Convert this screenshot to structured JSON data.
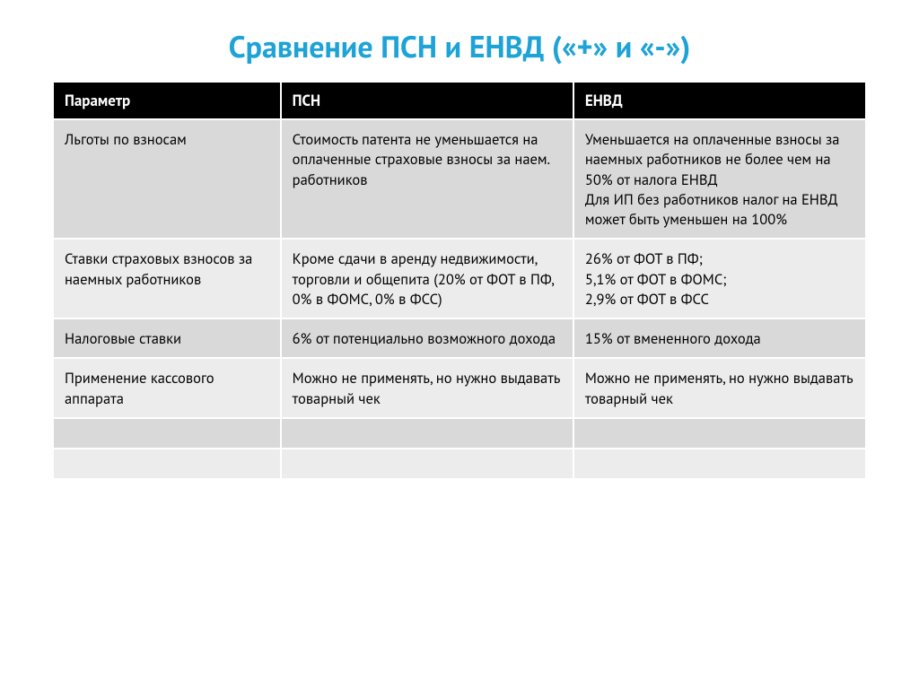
{
  "title": "Сравнение ПСН и ЕНВД («+» и «-»)",
  "colors": {
    "title": "#1ea3d6",
    "header_bg": "#000000",
    "header_text": "#ffffff",
    "row_odd_bg": "#d9d9d9",
    "row_even_bg": "#ececec",
    "cell_text": "#000000",
    "border": "#ffffff"
  },
  "table": {
    "columns": [
      {
        "key": "param",
        "label": "Параметр",
        "width": "28%"
      },
      {
        "key": "psn",
        "label": "ПСН",
        "width": "36%"
      },
      {
        "key": "envd",
        "label": "ЕНВД",
        "width": "36%"
      }
    ],
    "header_fontsize": 17,
    "cell_fontsize": 16.5,
    "rows": [
      {
        "param": "Льготы по взносам",
        "psn": "Стоимость патента не уменьшается на оплаченные страховые взносы за наем. работников",
        "envd": "Уменьшается на оплаченные взносы за наемных работников не более чем на 50% от налога ЕНВД\nДля ИП без работников налог на ЕНВД может быть уменьшен на 100%"
      },
      {
        "param": "Ставки страховых взносов за наемных работников",
        "psn": "Кроме сдачи в аренду недвижимости, торговли и общепита (20% от ФОТ в ПФ, 0% в ФОМС, 0% в ФСС)",
        "envd": "26% от ФОТ в ПФ;\n5,1% от ФОТ в ФОМС;\n2,9% от ФОТ в ФСС"
      },
      {
        "param": "Налоговые ставки",
        "psn": "6% от потенциально возможного дохода",
        "envd": "15% от вмененного дохода"
      },
      {
        "param": "Применение кассового аппарата",
        "psn": "Можно не применять, но нужно выдавать товарный чек",
        "envd": "Можно не применять, но нужно выдавать товарный чек"
      },
      {
        "param": "",
        "psn": "",
        "envd": ""
      },
      {
        "param": "",
        "psn": "",
        "envd": ""
      }
    ]
  }
}
